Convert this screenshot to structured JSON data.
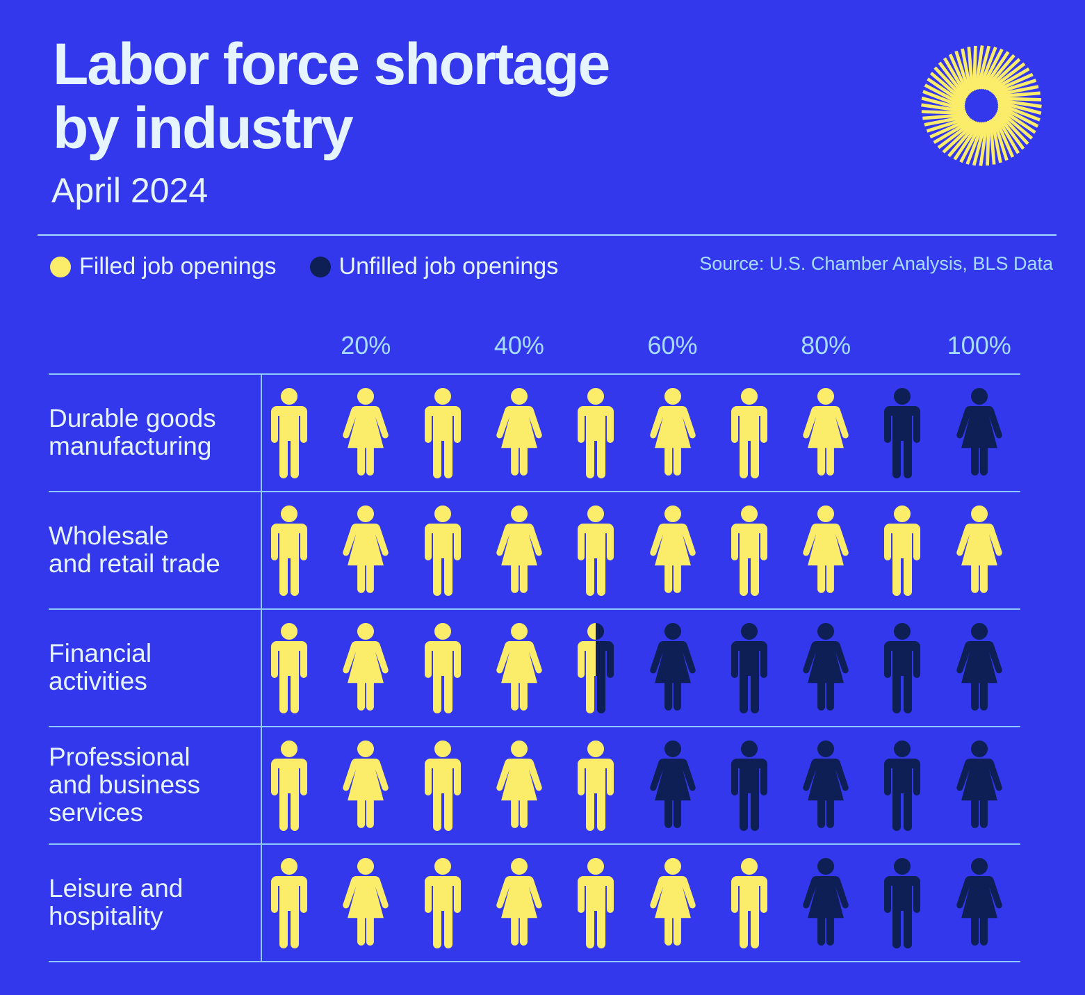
{
  "header": {
    "title_line1": "Labor force shortage",
    "title_line2": "by industry",
    "subtitle": "April 2024"
  },
  "logo": {
    "icon": "sunburst-logo-icon"
  },
  "legend": {
    "items": [
      {
        "label": "Filled job openings",
        "color": "#fbec6a"
      },
      {
        "label": "Unfilled job openings",
        "color": "#0d1f54"
      }
    ]
  },
  "source": "Source: U.S. Chamber Analysis, BLS Data",
  "colors": {
    "background": "#3338ec",
    "filled": "#fbec6a",
    "unfilled": "#0d1f54",
    "rule": "#8fc8ff",
    "accent_text": "#a8dcff",
    "title_text": "#e6f4ff"
  },
  "axis": {
    "ticks": [
      "20%",
      "40%",
      "60%",
      "80%",
      "100%"
    ]
  },
  "rows": [
    {
      "label": "Durable goods\nmanufacturing",
      "filled": 8
    },
    {
      "label": "Wholesale\nand retail trade",
      "filled": 10
    },
    {
      "label": "Financial\nactivities",
      "filled": 4.5
    },
    {
      "label": "Professional\nand business\nservices",
      "filled": 5
    },
    {
      "label": "Leisure and\nhospitality",
      "filled": 7
    }
  ],
  "chart_data": {
    "type": "bar",
    "subtype": "pictogram",
    "title": "Labor force shortage by industry",
    "subtitle": "April 2024",
    "source": "Source: U.S. Chamber Analysis, BLS Data",
    "xlabel": "",
    "ylabel": "",
    "xlim": [
      0,
      100
    ],
    "x_ticks": [
      "20%",
      "40%",
      "60%",
      "80%",
      "100%"
    ],
    "units_per_icon": "10%",
    "icons_per_row": 10,
    "icon_pattern": [
      "man",
      "woman"
    ],
    "legend": [
      "Filled job openings",
      "Unfilled job openings"
    ],
    "legend_position": "top-left",
    "grid": true,
    "categories": [
      "Durable goods manufacturing",
      "Wholesale and retail trade",
      "Financial activities",
      "Professional and business services",
      "Leisure and hospitality"
    ],
    "series": [
      {
        "name": "Filled job openings",
        "color": "#fbec6a",
        "values": [
          80,
          100,
          45,
          50,
          70
        ]
      },
      {
        "name": "Unfilled job openings",
        "color": "#0d1f54",
        "values": [
          20,
          0,
          55,
          50,
          30
        ]
      }
    ]
  }
}
